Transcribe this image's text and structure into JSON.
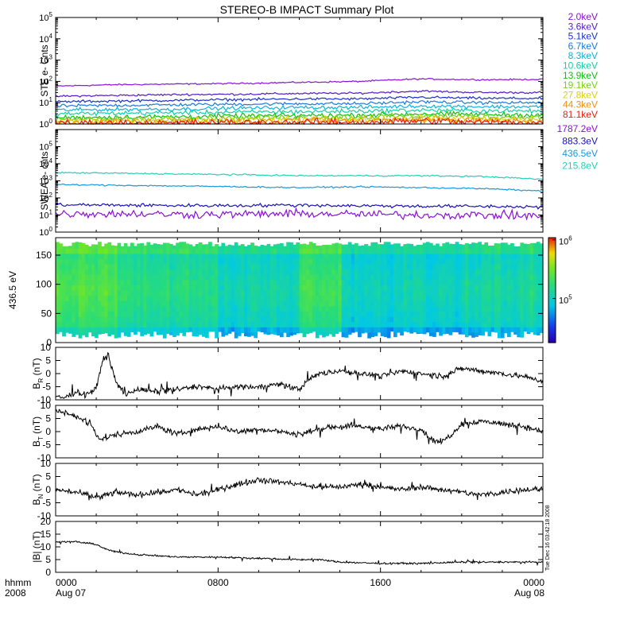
{
  "title": "STEREO-B IMPACT Summary Plot",
  "colors": {
    "ste": [
      "#8a10d8",
      "#5418c8",
      "#1830c8",
      "#1878e0",
      "#10b0d8",
      "#10d0a8",
      "#10c010",
      "#78d010",
      "#d8d010",
      "#f09010",
      "#e82010"
    ],
    "swea": [
      "#8a10d8",
      "#1810b8",
      "#1898e0",
      "#20d0b8"
    ],
    "line": "#000000"
  },
  "time_axis": {
    "label_row1": "hhmm",
    "label_row2": "2008",
    "ticks": [
      {
        "t": 0,
        "time": "0000",
        "date": "Aug 07"
      },
      {
        "t": 8,
        "time": "0800",
        "date": ""
      },
      {
        "t": 16,
        "time": "1600",
        "date": ""
      },
      {
        "t": 24,
        "time": "0000",
        "date": "Aug 08"
      }
    ],
    "minor_step_hours": 2
  },
  "timestamp": "Tue Dec 16 03:42:18 2008",
  "chart_data": [
    {
      "id": "ste",
      "type": "line",
      "ylabel": "STE e- Cnts",
      "yscale": "log",
      "ylim": [
        1,
        100000
      ],
      "tick_exponents": [
        0,
        1,
        2,
        3,
        4,
        5
      ],
      "tick_base": "10",
      "series": [
        {
          "name": "2.0keV",
          "base": [
            60,
            70,
            75,
            80,
            90,
            100,
            130,
            120,
            125
          ]
        },
        {
          "name": "3.6keV",
          "base": [
            20,
            22,
            24,
            25,
            27,
            28,
            35,
            30,
            30
          ]
        },
        {
          "name": "5.1keV",
          "base": [
            11,
            12,
            13,
            14,
            15,
            15,
            18,
            16,
            16
          ]
        },
        {
          "name": "6.7keV",
          "base": [
            7,
            7.5,
            8,
            8.5,
            9,
            9,
            11,
            10,
            10
          ]
        },
        {
          "name": "8.3keV",
          "base": [
            4.5,
            4.8,
            5,
            5.5,
            6,
            6,
            7,
            6.5,
            6.5
          ]
        },
        {
          "name": "10.6keV",
          "base": [
            3,
            3.2,
            3.4,
            3.6,
            3.8,
            4,
            4.5,
            4.2,
            4
          ]
        },
        {
          "name": "13.9keV",
          "base": [
            2,
            2.1,
            2.2,
            2.4,
            2.5,
            2.6,
            3,
            2.8,
            2.6
          ]
        },
        {
          "name": "19.1keV",
          "base": [
            1.6,
            1.7,
            1.8,
            1.9,
            2,
            2.1,
            2.4,
            2.2,
            2
          ]
        },
        {
          "name": "27.8keV",
          "base": [
            1.3,
            1.4,
            1.5,
            1.5,
            1.6,
            1.7,
            1.9,
            1.7,
            1.6
          ]
        },
        {
          "name": "44.3keV",
          "base": [
            1.15,
            1.2,
            1.25,
            1.3,
            1.35,
            1.4,
            1.6,
            1.4,
            1.3
          ]
        },
        {
          "name": "81.1keV",
          "base": [
            1.05,
            1.1,
            1.1,
            1.15,
            1.2,
            1.2,
            1.4,
            1.2,
            1.15
          ]
        }
      ]
    },
    {
      "id": "swea",
      "type": "line",
      "ylabel": "SWEA e- cnts",
      "yscale": "log",
      "ylim": [
        1,
        1000000
      ],
      "tick_exponents": [
        0,
        1,
        2,
        3,
        4,
        5
      ],
      "tick_base": "10",
      "series": [
        {
          "name": "1787.2eV",
          "base": [
            12,
            12,
            11,
            11,
            12,
            11,
            10,
            10,
            9
          ]
        },
        {
          "name": "883.3eV",
          "base": [
            40,
            38,
            36,
            36,
            38,
            35,
            33,
            32,
            30
          ]
        },
        {
          "name": "436.5eV",
          "base": [
            600,
            550,
            500,
            450,
            400,
            450,
            400,
            350,
            250
          ]
        },
        {
          "name": "215.8eV",
          "base": [
            3000,
            2800,
            2500,
            2300,
            2000,
            2000,
            2000,
            1800,
            1200
          ]
        }
      ]
    },
    {
      "id": "spectro",
      "type": "heatmap",
      "ylabel": "436.5 eV",
      "ylim": [
        0,
        180
      ],
      "yticks": [
        0,
        50,
        100,
        150
      ],
      "colorbar": {
        "scale": "log",
        "ticks": [
          {
            "base": "10",
            "exp": "5"
          },
          {
            "base": "10",
            "exp": "6"
          }
        ]
      }
    },
    {
      "id": "br",
      "type": "line",
      "ylabel_main": "B",
      "ylabel_sub": "R",
      "ylabel_unit": " (nT)",
      "ylim": [
        -10,
        10
      ],
      "yticks": [
        -10,
        -5,
        0,
        5,
        10
      ],
      "base_x": [
        0,
        0.5,
        1,
        1.5,
        2,
        2.3,
        2.6,
        3,
        3.5,
        4,
        5,
        6,
        7,
        8,
        9,
        10,
        11,
        12,
        12.5,
        13,
        14,
        15,
        16,
        17,
        18,
        19,
        20,
        21,
        22,
        23,
        24
      ],
      "base_y": [
        -9,
        -9,
        -7,
        -8,
        -6,
        5,
        7,
        -4,
        -8,
        -6,
        -7,
        -6,
        -5,
        -6,
        -5,
        -5,
        -4,
        -6,
        -2,
        0,
        1,
        0,
        -1,
        1,
        0,
        -1,
        2,
        1,
        0,
        -1,
        -3
      ]
    },
    {
      "id": "bt",
      "type": "line",
      "ylabel_main": "B",
      "ylabel_sub": "T",
      "ylabel_unit": " (nT)",
      "ylim": [
        -10,
        10
      ],
      "yticks": [
        -10,
        -5,
        0,
        5,
        10
      ],
      "base_x": [
        0,
        1,
        1.8,
        2.2,
        3,
        4,
        5,
        6,
        7,
        8,
        9,
        10,
        11,
        12,
        13,
        14,
        15,
        16,
        17,
        18,
        18.5,
        19,
        19.5,
        20,
        21,
        22,
        23,
        24
      ],
      "base_y": [
        8,
        6,
        2,
        -3,
        -1,
        0,
        2,
        -1,
        1,
        2,
        0,
        1,
        0,
        -1,
        1,
        2,
        2,
        1,
        2,
        1,
        -3,
        -4,
        -1,
        3,
        4,
        3,
        2,
        0
      ]
    },
    {
      "id": "bn",
      "type": "line",
      "ylabel_main": "B",
      "ylabel_sub": "N",
      "ylabel_unit": " (nT)",
      "ylim": [
        -10,
        10
      ],
      "yticks": [
        -10,
        -5,
        0,
        5,
        10
      ],
      "base_x": [
        0,
        1,
        2,
        3,
        4,
        5,
        6,
        7,
        8,
        9,
        10,
        11,
        12,
        13,
        14,
        15,
        16,
        17,
        18,
        19,
        20,
        21,
        22,
        23,
        24
      ],
      "base_y": [
        0,
        -1,
        -3,
        -1,
        -2,
        -1,
        0,
        -2,
        0,
        2,
        4,
        3,
        2,
        1,
        1,
        2,
        1,
        0,
        1,
        0,
        -1,
        -2,
        -1,
        0,
        0
      ]
    },
    {
      "id": "bmag",
      "type": "line",
      "ylabel_main": "|B|",
      "ylabel_sub": "",
      "ylabel_unit": " (nT)",
      "ylim": [
        0,
        20
      ],
      "yticks": [
        0,
        5,
        10,
        15,
        20
      ],
      "base_x": [
        0,
        1,
        2,
        2.5,
        3,
        4,
        5,
        6,
        8,
        10,
        12,
        13,
        14,
        16,
        18,
        20,
        22,
        24
      ],
      "base_y": [
        12,
        12,
        11,
        9,
        8,
        7,
        6.5,
        6,
        6,
        5.5,
        5,
        5,
        4,
        3.5,
        3.5,
        4,
        4,
        4
      ]
    }
  ]
}
